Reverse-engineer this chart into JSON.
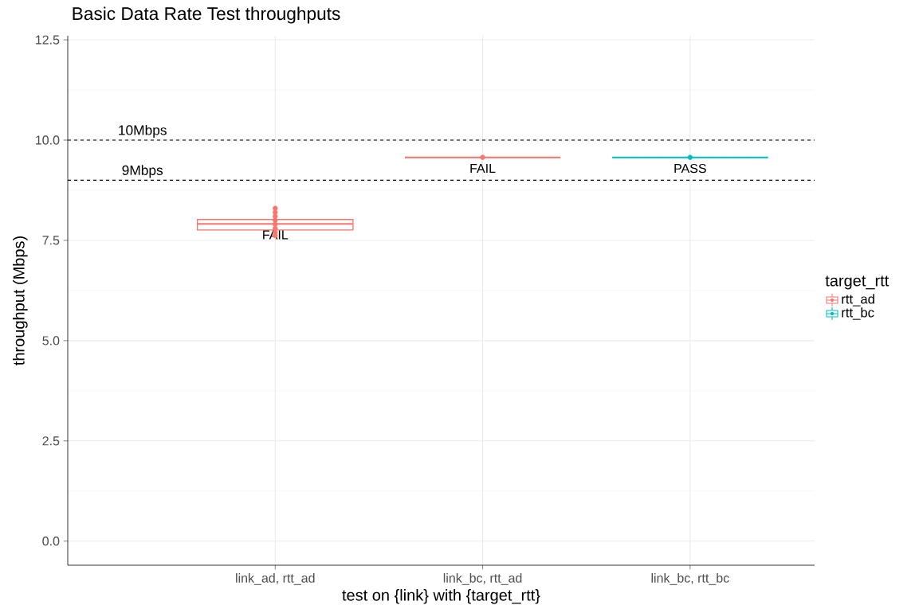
{
  "chart_data": {
    "type": "box",
    "title": "Basic Data Rate Test throughputs",
    "xlabel": "test on {link} with {target_rtt}",
    "ylabel": "throughput (Mbps)",
    "legend_title": "target_rtt",
    "categories": [
      "link_ad, rtt_ad",
      "link_bc, rtt_ad",
      "link_bc, rtt_bc"
    ],
    "ylim": [
      -0.6,
      12.6
    ],
    "yticks": [
      {
        "value": 0,
        "label": "0.0"
      },
      {
        "value": 2.5,
        "label": "2.5"
      },
      {
        "value": 5,
        "label": "5.0"
      },
      {
        "value": 7.5,
        "label": "7.5"
      },
      {
        "value": 10,
        "label": "10.0"
      },
      {
        "value": 12.5,
        "label": "12.5"
      }
    ],
    "series": [
      {
        "name": "rtt_ad",
        "color": "#f8766d",
        "boxes": [
          {
            "low": 7.62,
            "q1": 7.76,
            "median": 7.91,
            "q3": 8.02,
            "high": 8.3
          },
          {
            "low": 9.57,
            "q1": 9.57,
            "median": 9.57,
            "q3": 9.57,
            "high": 9.57
          },
          null
        ]
      },
      {
        "name": "rtt_bc",
        "color": "#00bfc4",
        "boxes": [
          null,
          null,
          {
            "low": 9.57,
            "q1": 9.57,
            "median": 9.57,
            "q3": 9.57,
            "high": 9.57
          }
        ]
      },
      {
        "type": "scatter",
        "color": "#f8766d",
        "x": [
          "link_ad, rtt_ad",
          "link_ad, rtt_ad",
          "link_ad, rtt_ad",
          "link_ad, rtt_ad",
          "link_ad, rtt_ad",
          "link_ad, rtt_ad",
          "link_ad, rtt_ad",
          "link_ad, rtt_ad",
          "link_bc, rtt_ad"
        ],
        "values": [
          8.3,
          8.2,
          8.1,
          8.0,
          7.9,
          7.8,
          7.7,
          7.62,
          9.57
        ]
      },
      {
        "type": "scatter",
        "color": "#00bfc4",
        "x": [
          "link_bc, rtt_bc"
        ],
        "values": [
          9.57
        ]
      }
    ],
    "ref_lines": [
      {
        "axis": "y",
        "value": 10,
        "label": "10Mbps",
        "color": "#000000",
        "line_style": "dashed"
      },
      {
        "axis": "y",
        "value": 9,
        "label": "9Mbps",
        "color": "#000000",
        "line_style": "dashed"
      }
    ],
    "annotations": [
      {
        "text": "FAIL",
        "x": "link_ad, rtt_ad",
        "y": 7.91
      },
      {
        "text": "FAIL",
        "x": "link_bc, rtt_ad",
        "y": 9.57
      },
      {
        "text": "PASS",
        "x": "link_bc, rtt_bc",
        "y": 9.57
      }
    ],
    "grid": true,
    "legend": "right"
  }
}
